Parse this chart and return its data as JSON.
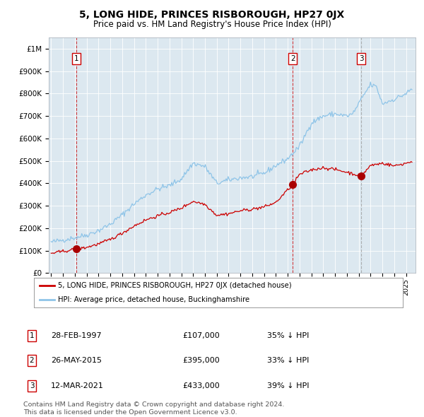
{
  "title": "5, LONG HIDE, PRINCES RISBOROUGH, HP27 0JX",
  "subtitle": "Price paid vs. HM Land Registry's House Price Index (HPI)",
  "title_fontsize": 10,
  "subtitle_fontsize": 8.5,
  "plot_bg_color": "#dce8f0",
  "ylim": [
    0,
    1050000
  ],
  "xlim_start": 1994.8,
  "xlim_end": 2025.8,
  "yticks": [
    0,
    100000,
    200000,
    300000,
    400000,
    500000,
    600000,
    700000,
    800000,
    900000,
    1000000
  ],
  "ytick_labels": [
    "£0",
    "£100K",
    "£200K",
    "£300K",
    "£400K",
    "£500K",
    "£600K",
    "£700K",
    "£800K",
    "£900K",
    "£1M"
  ],
  "xticks": [
    1995,
    1996,
    1997,
    1998,
    1999,
    2000,
    2001,
    2002,
    2003,
    2004,
    2005,
    2006,
    2007,
    2008,
    2009,
    2010,
    2011,
    2012,
    2013,
    2014,
    2015,
    2016,
    2017,
    2018,
    2019,
    2020,
    2021,
    2022,
    2023,
    2024,
    2025
  ],
  "hpi_color": "#8ec4e8",
  "property_color": "#cc0000",
  "vline1_x": 1997.15,
  "vline2_x": 2015.42,
  "vline3_x": 2021.21,
  "vline3_color": "#888888",
  "marker_color": "#aa0000",
  "marker_size": 7,
  "sale1": {
    "year": 1997.15,
    "price": 107000,
    "label": "1",
    "date": "28-FEB-1997",
    "hpi_pct": "35% ↓ HPI"
  },
  "sale2": {
    "year": 2015.42,
    "price": 395000,
    "label": "2",
    "date": "26-MAY-2015",
    "hpi_pct": "33% ↓ HPI"
  },
  "sale3": {
    "year": 2021.21,
    "price": 433000,
    "label": "3",
    "date": "12-MAR-2021",
    "hpi_pct": "39% ↓ HPI"
  },
  "legend_label_property": "5, LONG HIDE, PRINCES RISBOROUGH, HP27 0JX (detached house)",
  "legend_label_hpi": "HPI: Average price, detached house, Buckinghamshire",
  "footer": "Contains HM Land Registry data © Crown copyright and database right 2024.\nThis data is licensed under the Open Government Licence v3.0.",
  "footer_fontsize": 6.8
}
